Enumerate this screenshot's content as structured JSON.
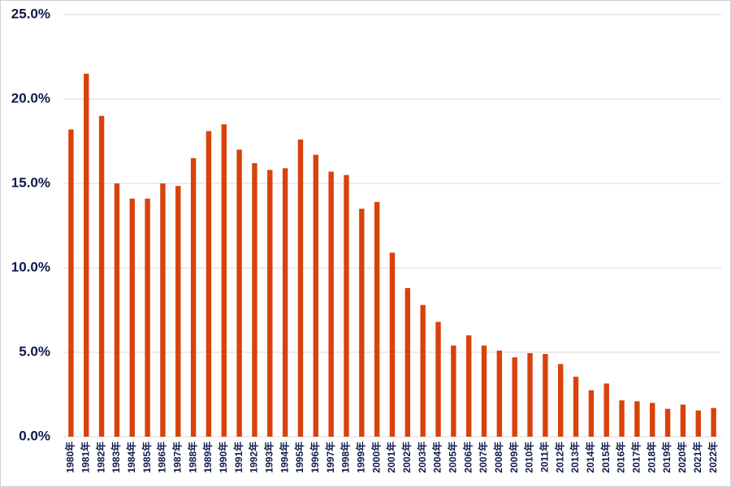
{
  "chart_data": {
    "type": "bar",
    "categories": [
      "1980年",
      "1981年",
      "1982年",
      "1983年",
      "1984年",
      "1985年",
      "1986年",
      "1987年",
      "1988年",
      "1989年",
      "1990年",
      "1991年",
      "1992年",
      "1993年",
      "1994年",
      "1995年",
      "1996年",
      "1997年",
      "1998年",
      "1999年",
      "2000年",
      "2001年",
      "2002年",
      "2003年",
      "2004年",
      "2005年",
      "2006年",
      "2007年",
      "2008年",
      "2009年",
      "2010年",
      "2011年",
      "2012年",
      "2013年",
      "2014年",
      "2015年",
      "2016年",
      "2017年",
      "2018年",
      "2019年",
      "2020年",
      "2021年",
      "2022年"
    ],
    "values": [
      18.2,
      21.5,
      19.0,
      15.0,
      14.1,
      14.1,
      15.0,
      14.85,
      16.5,
      18.1,
      18.5,
      17.0,
      16.2,
      15.8,
      15.9,
      17.6,
      16.7,
      15.7,
      15.5,
      13.5,
      13.9,
      10.9,
      8.8,
      7.8,
      6.8,
      5.4,
      6.0,
      5.4,
      5.1,
      4.7,
      4.95,
      4.9,
      4.3,
      3.55,
      2.75,
      3.15,
      2.15,
      2.1,
      2.0,
      1.65,
      1.9,
      1.55,
      1.7
    ],
    "color": "#d9420b",
    "ylim": [
      0,
      25
    ],
    "yticks": [
      {
        "value": 0,
        "label": "0.0%"
      },
      {
        "value": 5,
        "label": "5.0%"
      },
      {
        "value": 10,
        "label": "10.0%"
      },
      {
        "value": 15,
        "label": "15.0%"
      },
      {
        "value": 20,
        "label": "20.0%"
      },
      {
        "value": 25,
        "label": "25.0%"
      }
    ],
    "grid": true
  }
}
